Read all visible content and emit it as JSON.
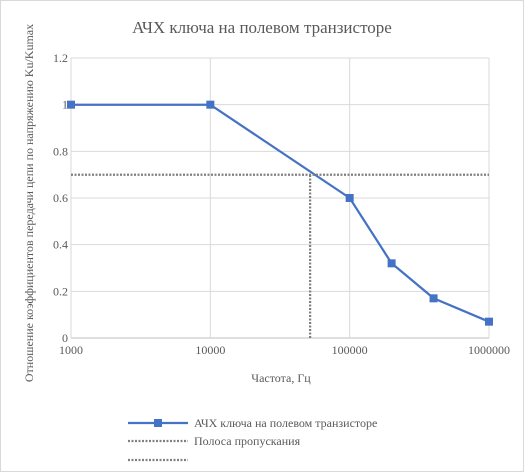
{
  "chart_data": {
    "type": "line",
    "title": "АЧХ ключа на полевом транзисторе",
    "xlabel": "Частота, Гц",
    "ylabel": "Отношение коэффициентов передачи цепи по напряжению Ku/Kumax",
    "x_scale": "log",
    "xlim": [
      1000,
      1000000
    ],
    "ylim": [
      0,
      1.2
    ],
    "x_ticks": [
      "1000",
      "10000",
      "100000",
      "1000000"
    ],
    "y_ticks": [
      "0",
      "0.2",
      "0.4",
      "0.6",
      "0.8",
      "1",
      "1.2"
    ],
    "grid": true,
    "legend_position": "bottom",
    "series": [
      {
        "name": "АЧХ ключа на полевом транзисторе",
        "color": "#4472c4",
        "marker": "square",
        "x": [
          1000,
          10000,
          100000,
          200000,
          400000,
          1000000
        ],
        "y": [
          1.0,
          1.0,
          0.6,
          0.32,
          0.17,
          0.07
        ]
      },
      {
        "name": "Полоса пропускания",
        "color": "#808080",
        "style": "dotted",
        "x": [
          1000,
          1000000
        ],
        "y": [
          0.7,
          0.7
        ]
      },
      {
        "name": "",
        "color": "#808080",
        "style": "dotted",
        "x": [
          52000,
          52000
        ],
        "y": [
          0,
          0.7
        ]
      }
    ]
  }
}
